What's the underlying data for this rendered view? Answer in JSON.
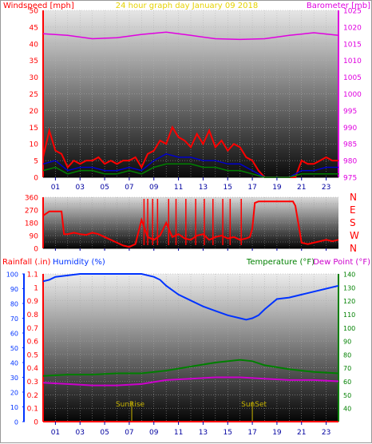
{
  "colors": {
    "wind": "#ff0000",
    "gust": "#cc0000",
    "avg": "#0000cc",
    "dir": "#008000",
    "baro": "#e000e0",
    "hum": "#0033ff",
    "temp": "#008000",
    "dew": "#cc00cc",
    "title": "#e6d200",
    "sun": "#c8b400",
    "tick": "#0000a0"
  },
  "chart_data": [
    {
      "type": "line",
      "title": "24 hour graph day   January 09 2018",
      "ylabel_left": "Windspeed [mph]",
      "ylabel_right": "Barometer [mb]",
      "ylim_left": [
        0,
        50
      ],
      "ylim_right": [
        975,
        1025
      ],
      "yticks_left": [
        "0",
        "5",
        "10",
        "15",
        "20",
        "25",
        "30",
        "35",
        "40",
        "45",
        "50"
      ],
      "yticks_right": [
        "975",
        "980",
        "985",
        "990",
        "995",
        "1000",
        "1005",
        "1010",
        "1015",
        "1020",
        "1025"
      ],
      "x_tick_labels": [
        "01",
        "03",
        "05",
        "07",
        "09",
        "11",
        "13",
        "15",
        "17",
        "19",
        "21",
        "23"
      ],
      "series": [
        {
          "name": "Barometer [mb]",
          "x": [
            0,
            2,
            4,
            6,
            8,
            10,
            12,
            14,
            16,
            18,
            20,
            22,
            24
          ],
          "values": [
            1018,
            1017.5,
            1016.5,
            1016.8,
            1017.8,
            1018.5,
            1017.5,
            1016.5,
            1016.3,
            1016.5,
            1017.5,
            1018.3,
            1017.5
          ]
        },
        {
          "x": [
            0,
            0.5,
            1,
            1.5,
            2,
            2.5,
            3,
            3.5,
            4,
            4.5,
            5,
            5.5,
            6,
            6.5,
            7,
            7.5,
            8,
            8.5,
            9,
            9.5,
            10,
            10.5,
            11,
            11.5,
            12,
            12.5,
            13,
            13.5,
            14,
            14.5,
            15,
            15.5,
            16,
            16.5,
            17,
            17.5,
            18,
            18.5,
            19,
            19.5,
            20,
            20.5,
            21,
            21.5,
            22,
            22.5,
            23,
            23.5,
            24
          ],
          "values": [
            6,
            14,
            8,
            7,
            3,
            5,
            4,
            5,
            5,
            6,
            4,
            5,
            4,
            5,
            5,
            6,
            3,
            7,
            8,
            11,
            10,
            15,
            12,
            11,
            9,
            13,
            10,
            14,
            9,
            11,
            8,
            10,
            9,
            6,
            5,
            2,
            0,
            0,
            0,
            0,
            0,
            0,
            5,
            4,
            4,
            5,
            6,
            5,
            5
          ]
        },
        {
          "x": [
            0,
            1,
            2,
            3,
            4,
            5,
            6,
            7,
            8,
            9,
            10,
            11,
            12,
            13,
            14,
            15,
            16,
            17,
            18,
            19,
            20,
            21,
            22,
            23,
            24
          ],
          "values": [
            4,
            5,
            2,
            3,
            3,
            2,
            2,
            3,
            2,
            5,
            7,
            6,
            6,
            5,
            5,
            4,
            4,
            2,
            0,
            0,
            0,
            2,
            2,
            3,
            3
          ]
        },
        {
          "x": [
            0,
            1,
            2,
            3,
            4,
            5,
            6,
            7,
            8,
            9,
            10,
            11,
            12,
            13,
            14,
            15,
            16,
            17,
            18,
            19,
            20,
            21,
            22,
            23,
            24
          ],
          "values": [
            2,
            3,
            1,
            2,
            2,
            1,
            1,
            2,
            1,
            3,
            4,
            4,
            4,
            3,
            3,
            2,
            2,
            1,
            0,
            0,
            0,
            1,
            1,
            1,
            1
          ]
        }
      ]
    },
    {
      "type": "line",
      "ylabel_right": [
        "N",
        "W",
        "S",
        "E",
        "N"
      ],
      "ylim": [
        0,
        360
      ],
      "yticks": [
        "0",
        "45",
        "90",
        "135",
        "180",
        "225",
        "270",
        "315",
        "360"
      ],
      "x_tick_labels": [
        "01",
        "03",
        "05",
        "07",
        "09",
        "11",
        "13",
        "15",
        "17",
        "19",
        "21",
        "23"
      ],
      "series": [
        {
          "x": [
            0,
            0.5,
            0.8,
            1.5,
            1.7,
            2,
            2.5,
            3,
            3.5,
            4,
            4.5,
            5,
            5.5,
            6,
            6.5,
            7,
            7.5,
            8,
            8.5,
            9,
            9.5,
            10,
            10.5,
            11,
            11.5,
            12,
            12.5,
            13,
            13.5,
            14,
            14.5,
            15,
            15.5,
            16,
            16.5,
            16.8,
            17,
            17.2,
            17.5,
            18,
            19,
            20,
            20.3,
            20.5,
            21,
            21.5,
            22,
            22.5,
            23,
            23.5,
            24
          ],
          "values": [
            230,
            260,
            260,
            260,
            100,
            100,
            110,
            100,
            95,
            110,
            100,
            80,
            60,
            40,
            20,
            10,
            30,
            200,
            80,
            60,
            90,
            180,
            80,
            100,
            70,
            60,
            90,
            100,
            60,
            80,
            90,
            70,
            80,
            60,
            70,
            80,
            140,
            320,
            330,
            330,
            330,
            330,
            330,
            300,
            40,
            30,
            40,
            50,
            60,
            50,
            60
          ]
        }
      ]
    },
    {
      "type": "line",
      "ylabel_left": "Rainfall (.in)",
      "ylabel_mid": "Humidity (%)",
      "ylabel_right": "Temperature (°F)",
      "ylabel_right2": "Dew Point (°F)",
      "ylim_left": [
        0,
        1.1
      ],
      "ylim_left2": [
        0,
        100
      ],
      "ylim_right": [
        30,
        140
      ],
      "yticks_left": [
        "0",
        "0.1",
        "0.2",
        "0.3",
        "0.4",
        "0.5",
        "0.6",
        "0.7",
        "0.8",
        "0.9",
        "1",
        "1.1"
      ],
      "yticks_left2": [
        "0",
        "10",
        "20",
        "30",
        "40",
        "50",
        "60",
        "70",
        "80",
        "90",
        "100"
      ],
      "yticks_right": [
        "40",
        "50",
        "60",
        "70",
        "80",
        "90",
        "100",
        "110",
        "120",
        "130",
        "140"
      ],
      "x_tick_labels": [
        "01",
        "03",
        "05",
        "07",
        "09",
        "11",
        "13",
        "15",
        "17",
        "19",
        "21",
        "23"
      ],
      "annotations": [
        "SunRise",
        "SunSet"
      ],
      "series": [
        {
          "name": "Humidity (%)",
          "x": [
            0,
            0.5,
            1,
            2,
            3,
            4,
            5,
            6,
            7,
            8,
            9,
            9.5,
            10,
            11,
            12,
            13,
            14,
            15,
            16,
            16.5,
            17,
            17.5,
            18,
            19,
            20,
            21,
            22,
            23,
            24
          ],
          "values": [
            95,
            96,
            98,
            99,
            100,
            100,
            100,
            100,
            100,
            100,
            98,
            96,
            92,
            86,
            82,
            78,
            75,
            72,
            70,
            69,
            70,
            72,
            76,
            83,
            84,
            86,
            88,
            90,
            92
          ]
        },
        {
          "name": "Temperature (°F)",
          "x": [
            0,
            2,
            4,
            6,
            8,
            10,
            12,
            14,
            16,
            17,
            18,
            20,
            22,
            24
          ],
          "values": [
            64,
            65,
            65,
            66,
            66,
            68,
            71,
            74,
            76,
            75,
            72,
            69,
            67,
            66
          ]
        },
        {
          "name": "Dew Point (°F)",
          "x": [
            0,
            2,
            4,
            6,
            8,
            10,
            12,
            14,
            16,
            18,
            20,
            22,
            24
          ],
          "values": [
            59,
            58,
            57,
            57,
            58,
            61,
            62,
            63,
            63,
            62,
            61,
            61,
            60
          ]
        },
        {
          "name": "Rainfall (.in)",
          "x": [
            0,
            24
          ],
          "values": [
            0,
            0
          ]
        }
      ]
    }
  ]
}
